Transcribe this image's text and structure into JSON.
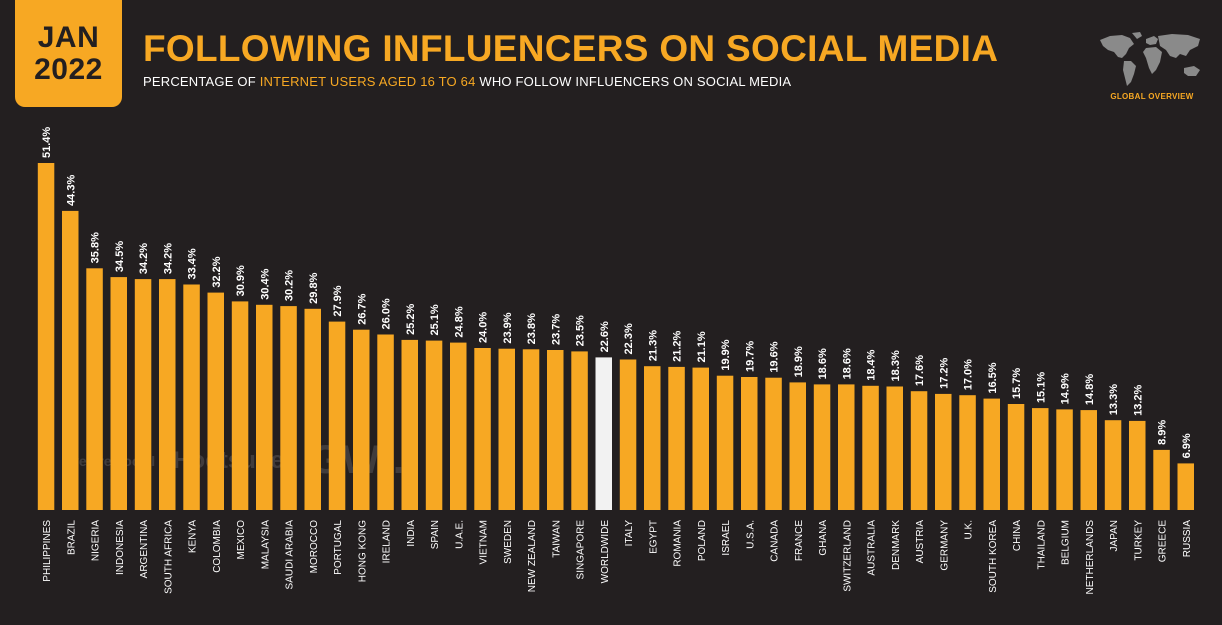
{
  "header": {
    "month": "JAN",
    "year": "2022",
    "title": "FOLLOWING INFLUENCERS ON SOCIAL MEDIA",
    "subtitle_pre": "PERCENTAGE OF ",
    "subtitle_highlight": "INTERNET USERS AGED 16 TO 64",
    "subtitle_post": " WHO FOLLOW INFLUENCERS ON SOCIAL MEDIA",
    "badge": "GLOBAL OVERVIEW"
  },
  "watermark": {
    "we_are_social": "we are social",
    "hootsuite": "Hootsuite",
    "gwi": "GWI."
  },
  "colors": {
    "background": "#231f20",
    "accent": "#f7a823",
    "highlight_bar": "#f2f2f2"
  },
  "chart_data": {
    "type": "bar",
    "title": "FOLLOWING INFLUENCERS ON SOCIAL MEDIA",
    "xlabel": "",
    "ylabel": "",
    "ylim": [
      0,
      51.4
    ],
    "grid": false,
    "highlight_category": "WORLDWIDE",
    "categories": [
      "PHILIPPINES",
      "BRAZIL",
      "NIGERIA",
      "INDONESIA",
      "ARGENTINA",
      "SOUTH AFRICA",
      "KENYA",
      "COLOMBIA",
      "MEXICO",
      "MALAYSIA",
      "SAUDI ARABIA",
      "MOROCCO",
      "PORTUGAL",
      "HONG KONG",
      "IRELAND",
      "INDIA",
      "SPAIN",
      "U.A.E.",
      "VIETNAM",
      "SWEDEN",
      "NEW ZEALAND",
      "TAIWAN",
      "SINGAPORE",
      "WORLDWIDE",
      "ITALY",
      "EGYPT",
      "ROMANIA",
      "POLAND",
      "ISRAEL",
      "U.S.A.",
      "CANADA",
      "FRANCE",
      "GHANA",
      "SWITZERLAND",
      "AUSTRALIA",
      "DENMARK",
      "AUSTRIA",
      "GERMANY",
      "U.K.",
      "SOUTH KOREA",
      "CHINA",
      "THAILAND",
      "BELGIUM",
      "NETHERLANDS",
      "JAPAN",
      "TURKEY",
      "GREECE",
      "RUSSIA"
    ],
    "values": [
      51.4,
      44.3,
      35.8,
      34.5,
      34.2,
      34.2,
      33.4,
      32.2,
      30.9,
      30.4,
      30.2,
      29.8,
      27.9,
      26.7,
      26.0,
      25.2,
      25.1,
      24.8,
      24.0,
      23.9,
      23.8,
      23.7,
      23.5,
      22.6,
      22.3,
      21.3,
      21.2,
      21.1,
      19.9,
      19.7,
      19.6,
      18.9,
      18.6,
      18.6,
      18.4,
      18.3,
      17.6,
      17.2,
      17.0,
      16.5,
      15.7,
      15.1,
      14.9,
      14.8,
      13.3,
      13.2,
      8.9,
      6.9
    ],
    "value_labels": [
      "51.4%",
      "44.3%",
      "35.8%",
      "34.5%",
      "34.2%",
      "34.2%",
      "33.4%",
      "32.2%",
      "30.9%",
      "30.4%",
      "30.2%",
      "29.8%",
      "27.9%",
      "26.7%",
      "26.0%",
      "25.2%",
      "25.1%",
      "24.8%",
      "24.0%",
      "23.9%",
      "23.8%",
      "23.7%",
      "23.5%",
      "22.6%",
      "22.3%",
      "21.3%",
      "21.2%",
      "21.1%",
      "19.9%",
      "19.7%",
      "19.6%",
      "18.9%",
      "18.6%",
      "18.6%",
      "18.4%",
      "18.3%",
      "17.6%",
      "17.2%",
      "17.0%",
      "16.5%",
      "15.7%",
      "15.1%",
      "14.9%",
      "14.8%",
      "13.3%",
      "13.2%",
      "8.9%",
      "6.9%"
    ]
  }
}
